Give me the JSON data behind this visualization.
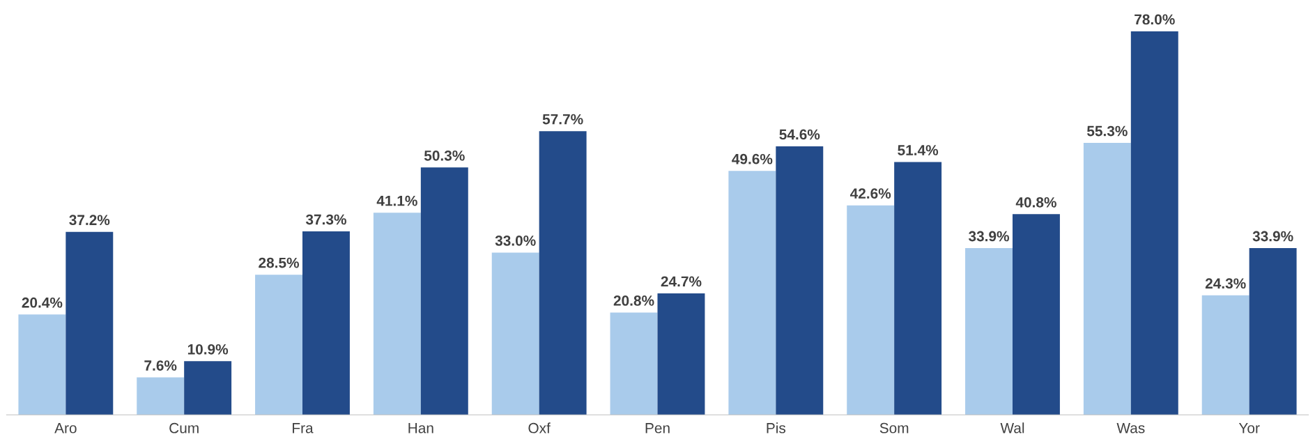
{
  "chart_data": {
    "type": "bar",
    "categories": [
      "Aro",
      "Cum",
      "Fra",
      "Han",
      "Oxf",
      "Pen",
      "Pis",
      "Som",
      "Wal",
      "Was",
      "Yor"
    ],
    "series": [
      {
        "color": "#a9cbeb",
        "values": [
          20.4,
          7.6,
          28.5,
          41.1,
          33.0,
          20.8,
          49.6,
          42.6,
          33.9,
          55.3,
          24.3
        ],
        "value_labels": [
          "20.4%",
          "7.6%",
          "28.5%",
          "41.1%",
          "33.0%",
          "20.8%",
          "49.6%",
          "42.6%",
          "33.9%",
          "55.3%",
          "24.3%"
        ]
      },
      {
        "color": "#234b8a",
        "values": [
          37.2,
          10.9,
          37.3,
          50.3,
          57.7,
          24.7,
          54.6,
          51.4,
          40.8,
          78.0,
          33.9
        ],
        "value_labels": [
          "37.2%",
          "10.9%",
          "37.3%",
          "50.3%",
          "57.7%",
          "24.7%",
          "54.6%",
          "51.4%",
          "40.8%",
          "78.0%",
          "33.9%"
        ]
      }
    ],
    "grid": false,
    "legend": false,
    "tick_labels": "x"
  }
}
